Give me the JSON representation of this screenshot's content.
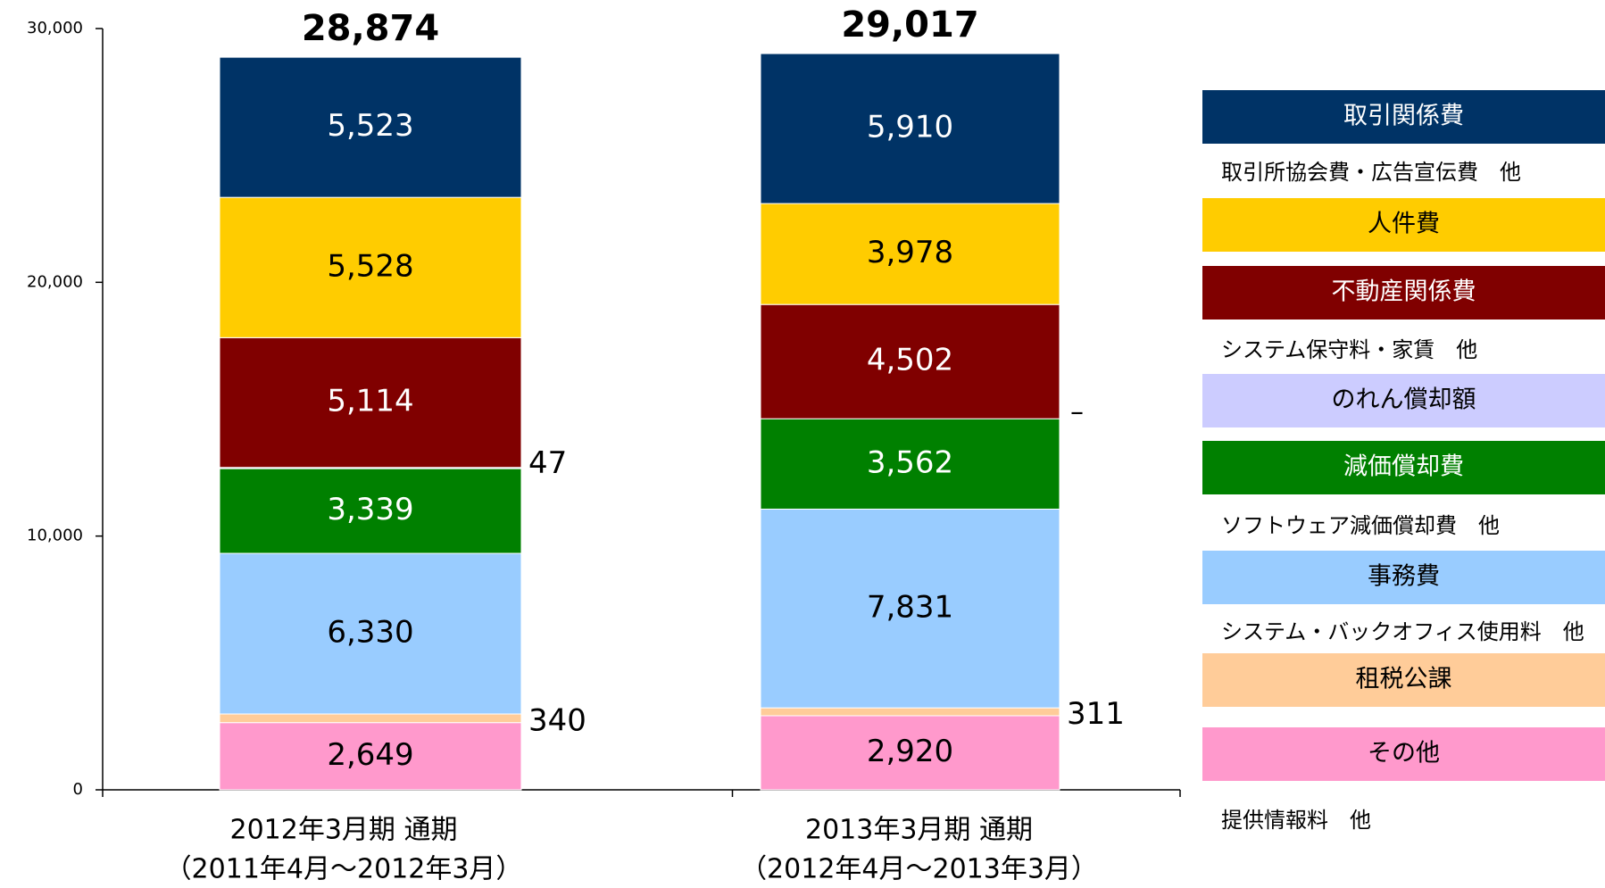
{
  "chart_data": {
    "type": "stacked_bar",
    "categories": [
      "2012年3月期 通期",
      "2013年3月期 通期"
    ],
    "category_periods": [
      "（2011年4月～2012年3月）",
      "（2012年4月～2013年3月）"
    ],
    "totals": [
      28874,
      29017
    ],
    "total_labels": [
      "28,874",
      "29,017"
    ],
    "ylim": [
      0,
      30000
    ],
    "yticks": [
      0,
      {
        "value": 10000,
        "label": "10,000"
      },
      {
        "value": 20000,
        "label": "20,000"
      },
      {
        "value": 30000,
        "label": "30,000"
      }
    ],
    "series": [
      {
        "name": "その他",
        "color": "#ff99cc",
        "label_color": "#000000",
        "values": [
          2649,
          2920
        ],
        "value_labels": [
          "2,649",
          "2,920"
        ],
        "note": "提供情報料　他"
      },
      {
        "name": "租税公課",
        "color": "#ffcc99",
        "label_color": "#000000",
        "values": [
          340,
          311
        ]
      },
      {
        "name": "事務費",
        "color": "#99ccff",
        "label_color": "#000000",
        "values": [
          6330,
          7831
        ],
        "value_labels": [
          "6,330",
          "7,831"
        ],
        "note": "システム・バックオフィス使用料　他"
      },
      {
        "name": "減価償却費",
        "color": "#008000",
        "label_color": "#ffffff",
        "values": [
          3339,
          3562
        ],
        "value_labels": [
          "3,339",
          "3,562"
        ],
        "note": "ソフトウェア減価償却費　他"
      },
      {
        "name": "のれん償却額",
        "color": "#ccccff",
        "label_color": "#000000",
        "values": [
          47,
          null
        ],
        "value_labels": [
          "47",
          "–"
        ]
      },
      {
        "name": "不動産関係費",
        "color": "#800000",
        "label_color": "#ffffff",
        "values": [
          5114,
          4502
        ],
        "value_labels": [
          "5,114",
          "4,502"
        ],
        "note": "システム保守料・家賃　他"
      },
      {
        "name": "人件費",
        "color": "#ffcc00",
        "label_color": "#000000",
        "values": [
          5528,
          3978
        ],
        "value_labels": [
          "5,528",
          "3,978"
        ]
      },
      {
        "name": "取引関係費",
        "color": "#003366",
        "label_color": "#ffffff",
        "values": [
          5523,
          5910
        ],
        "value_labels": [
          "5,523",
          "5,910"
        ],
        "note": "取引所協会費・広告宣伝費　他"
      }
    ]
  }
}
